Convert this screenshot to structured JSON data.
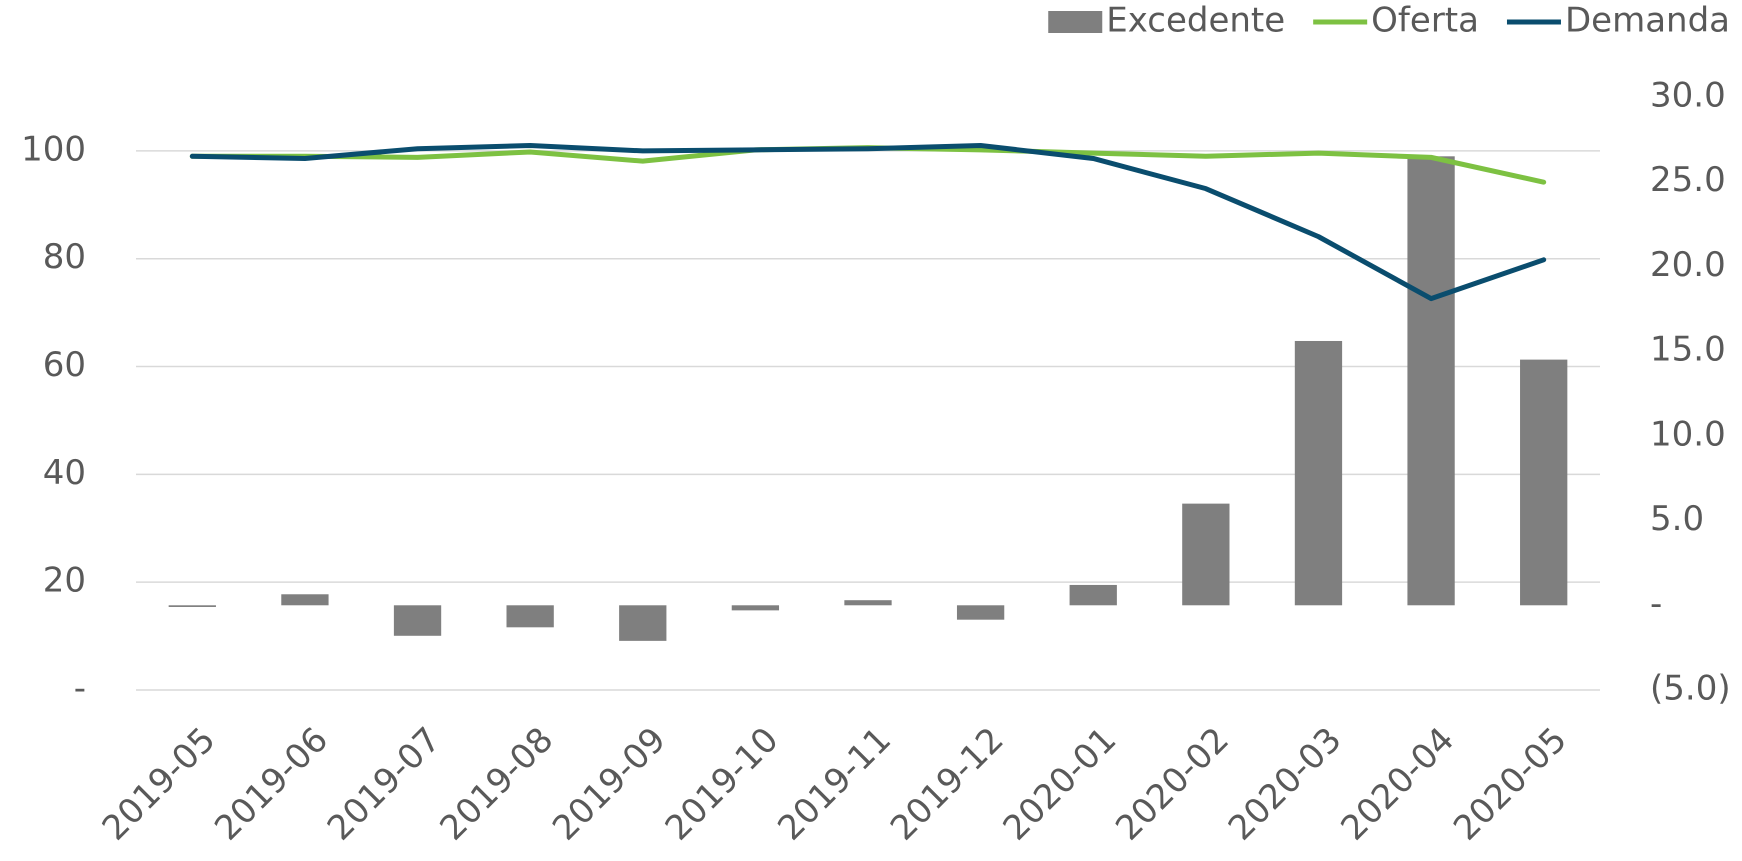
{
  "chart_data": {
    "type": "bar-line",
    "categories": [
      "2019-05",
      "2019-06",
      "2019-07",
      "2019-08",
      "2019-09",
      "2019-10",
      "2019-11",
      "2019-12",
      "2020-01",
      "2020-02",
      "2020-03",
      "2020-04",
      "2020-05"
    ],
    "series": [
      {
        "name": "Excedente",
        "type": "bar",
        "axis": "y2",
        "color": "#7f7f7f",
        "values": [
          -0.1,
          0.65,
          -1.8,
          -1.3,
          -2.1,
          -0.3,
          0.3,
          -0.85,
          1.2,
          6.0,
          15.6,
          26.5,
          14.5
        ]
      },
      {
        "name": "Oferta",
        "type": "line",
        "color": "#7dc142",
        "values": [
          99.0,
          99.0,
          98.8,
          99.8,
          98.1,
          100.2,
          100.6,
          100.2,
          99.6,
          99.0,
          99.6,
          98.8,
          94.2
        ]
      },
      {
        "name": "Demanda",
        "type": "line",
        "color": "#0a4d6e",
        "values": [
          99.0,
          98.6,
          100.4,
          101.0,
          100.0,
          100.2,
          100.4,
          101.0,
          98.6,
          93.0,
          84.1,
          72.6,
          79.8
        ]
      }
    ],
    "ylim": [
      0,
      110
    ],
    "yticks": [
      {
        "value": 0,
        "label": "-"
      },
      20,
      40,
      60,
      80,
      100
    ],
    "y2lim": [
      -5,
      30
    ],
    "y2ticks": [
      {
        "value": -5,
        "label": "(5.0)"
      },
      {
        "value": 0,
        "label": "-"
      },
      {
        "value": 5,
        "label": "5.0"
      },
      {
        "value": 10,
        "label": "10.0"
      },
      {
        "value": 15,
        "label": "15.0"
      },
      {
        "value": 20,
        "label": "20.0"
      },
      {
        "value": 25,
        "label": "25.0"
      },
      {
        "value": 30,
        "label": "30.0"
      }
    ],
    "grid": true,
    "legend": "top-right"
  }
}
